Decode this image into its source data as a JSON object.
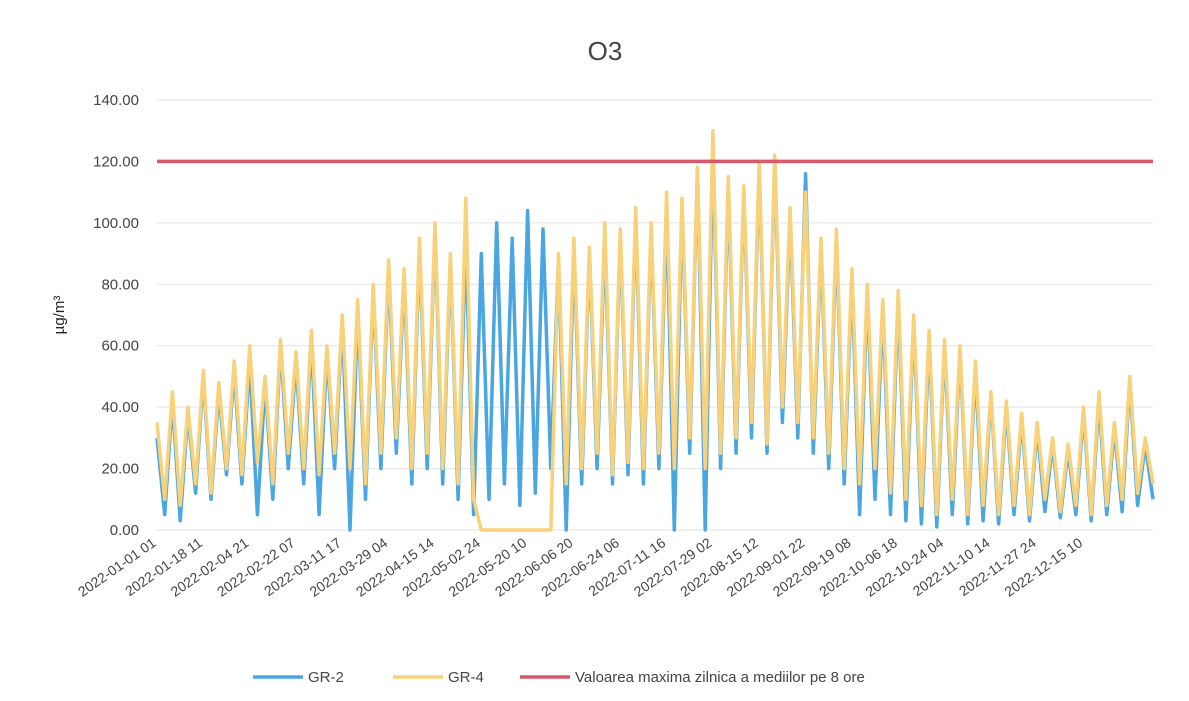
{
  "chart_data": {
    "type": "line",
    "title": "O3",
    "y_label": "µg/m³",
    "categories": [
      "2022-01-01 01",
      null,
      null,
      null,
      null,
      null,
      "2022-01-18 11",
      null,
      null,
      null,
      null,
      null,
      "2022-02-04 21",
      null,
      null,
      null,
      null,
      null,
      "2022-02-22 07",
      null,
      null,
      null,
      null,
      null,
      "2022-03-11 17",
      null,
      null,
      null,
      null,
      null,
      "2022-03-29 04",
      null,
      null,
      null,
      null,
      null,
      "2022-04-15 14",
      null,
      null,
      null,
      null,
      null,
      "2022-05-02 24",
      null,
      null,
      null,
      null,
      null,
      "2022-05-20 10",
      null,
      null,
      null,
      null,
      null,
      "2022-06-06 20",
      null,
      null,
      null,
      null,
      null,
      "2022-06-24 06",
      null,
      null,
      null,
      null,
      null,
      "2022-07-11 16",
      null,
      null,
      null,
      null,
      null,
      "2022-07-29 02",
      null,
      null,
      null,
      null,
      null,
      "2022-08-15 12",
      null,
      null,
      null,
      null,
      null,
      "2022-09-01 22",
      null,
      null,
      null,
      null,
      null,
      "2022-09-19 08",
      null,
      null,
      null,
      null,
      null,
      "2022-10-06 18",
      null,
      null,
      null,
      null,
      null,
      "2022-10-24 04",
      null,
      null,
      null,
      null,
      null,
      "2022-11-10 14",
      null,
      null,
      null,
      null,
      null,
      "2022-11-27 24",
      null,
      null,
      null,
      null,
      null,
      "2022-12-15 10",
      null,
      null,
      null,
      null,
      null,
      null,
      null,
      null,
      null
    ],
    "series": [
      {
        "name": "GR-2",
        "color": "#4aa6e0",
        "values": [
          30,
          5,
          42,
          3,
          38,
          12,
          50,
          10,
          45,
          18,
          52,
          15,
          55,
          5,
          48,
          10,
          60,
          20,
          55,
          15,
          62,
          5,
          58,
          20,
          68,
          0,
          72,
          10,
          78,
          20,
          85,
          25,
          82,
          15,
          92,
          20,
          98,
          15,
          88,
          10,
          95,
          5,
          90,
          10,
          100,
          15,
          95,
          8,
          104,
          12,
          98,
          20,
          88,
          0,
          92,
          15,
          90,
          20,
          95,
          15,
          95,
          18,
          102,
          15,
          98,
          20,
          105,
          0,
          106,
          25,
          118,
          0,
          125,
          20,
          112,
          25,
          110,
          30,
          118,
          25,
          120,
          35,
          102,
          30,
          116,
          25,
          92,
          20,
          95,
          15,
          82,
          5,
          78,
          10,
          72,
          5,
          75,
          3,
          68,
          2,
          62,
          1,
          60,
          5,
          58,
          2,
          52,
          3,
          44,
          2,
          40,
          5,
          36,
          3,
          33,
          6,
          28,
          4,
          26,
          5,
          38,
          3,
          42,
          5,
          33,
          6,
          48,
          8,
          28,
          10
        ]
      },
      {
        "name": "GR-4",
        "color": "#f8d27a",
        "values": [
          35,
          10,
          45,
          8,
          40,
          15,
          52,
          12,
          48,
          20,
          55,
          18,
          60,
          22,
          50,
          15,
          62,
          25,
          58,
          20,
          65,
          18,
          60,
          25,
          70,
          20,
          75,
          15,
          80,
          25,
          88,
          30,
          85,
          20,
          95,
          25,
          100,
          20,
          90,
          15,
          108,
          10,
          0,
          0,
          0,
          0,
          0,
          0,
          0,
          0,
          0,
          0,
          90,
          15,
          95,
          20,
          92,
          25,
          100,
          18,
          98,
          22,
          105,
          20,
          100,
          25,
          110,
          20,
          108,
          30,
          118,
          20,
          130,
          25,
          115,
          30,
          112,
          35,
          120,
          28,
          122,
          40,
          105,
          35,
          110,
          30,
          95,
          25,
          98,
          20,
          85,
          15,
          80,
          20,
          75,
          12,
          78,
          10,
          70,
          8,
          65,
          5,
          62,
          10,
          60,
          5,
          55,
          8,
          45,
          5,
          42,
          8,
          38,
          5,
          35,
          10,
          30,
          6,
          28,
          8,
          40,
          5,
          45,
          8,
          35,
          10,
          50,
          12,
          30,
          15
        ]
      }
    ],
    "limit": {
      "name": "Valoarea maxima zilnica a mediilor pe 8 ore",
      "color": "#d9596a",
      "value": 120
    },
    "ylim": [
      0,
      140
    ],
    "yticks": [
      {
        "value": 0,
        "label": "0.00"
      },
      {
        "value": 20,
        "label": "20.00"
      },
      {
        "value": 40,
        "label": "40.00"
      },
      {
        "value": 60,
        "label": "60.00"
      },
      {
        "value": 80,
        "label": "80.00"
      },
      {
        "value": 100,
        "label": "100.00"
      },
      {
        "value": 120,
        "label": "120.00"
      },
      {
        "value": 140,
        "label": "140.00"
      }
    ],
    "grid": true
  }
}
